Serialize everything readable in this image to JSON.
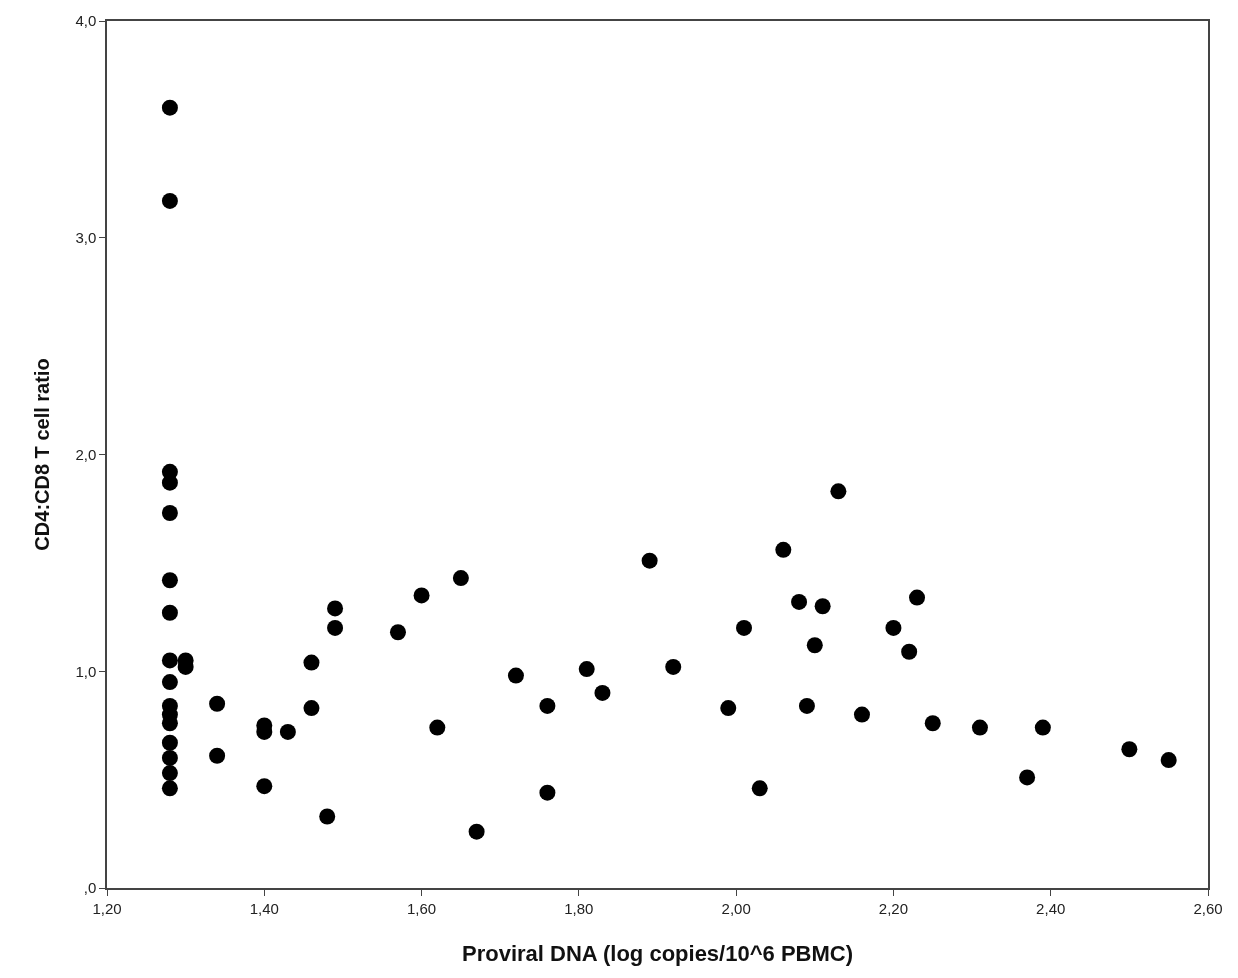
{
  "chart_data": {
    "type": "scatter",
    "xlabel": "Proviral DNA (log copies/10^6 PBMC)",
    "ylabel": "CD4:CD8 T cell ratio",
    "x": [
      1.28,
      1.28,
      1.28,
      1.28,
      1.28,
      1.28,
      1.28,
      1.28,
      1.28,
      1.28,
      1.28,
      1.28,
      1.28,
      1.28,
      1.28,
      1.28,
      1.3,
      1.3,
      1.34,
      1.34,
      1.4,
      1.4,
      1.4,
      1.43,
      1.46,
      1.46,
      1.48,
      1.49,
      1.49,
      1.57,
      1.6,
      1.62,
      1.65,
      1.67,
      1.72,
      1.76,
      1.76,
      1.81,
      1.83,
      1.89,
      1.92,
      1.99,
      2.01,
      2.03,
      2.06,
      2.08,
      2.09,
      2.1,
      2.11,
      2.13,
      2.16,
      2.2,
      2.22,
      2.23,
      2.25,
      2.31,
      2.37,
      2.39,
      2.5,
      2.55
    ],
    "series": [
      {
        "color": "#000000",
        "values": [
          3.6,
          3.17,
          1.92,
          1.87,
          1.73,
          1.42,
          1.27,
          1.05,
          0.95,
          0.84,
          0.8,
          0.76,
          0.67,
          0.6,
          0.53,
          0.46,
          1.05,
          1.02,
          0.85,
          0.61,
          0.75,
          0.72,
          0.47,
          0.72,
          1.04,
          0.83,
          0.33,
          1.29,
          1.2,
          1.18,
          1.35,
          0.74,
          1.43,
          0.26,
          0.98,
          0.84,
          0.44,
          1.01,
          0.9,
          1.51,
          1.02,
          0.83,
          1.2,
          0.46,
          1.56,
          1.32,
          0.84,
          1.12,
          1.3,
          1.83,
          0.8,
          1.2,
          1.09,
          1.34,
          0.76,
          0.74,
          0.51,
          0.74,
          0.64,
          0.59
        ]
      }
    ],
    "xlim": [
      1.2,
      2.6
    ],
    "xticks": [
      {
        "value": 1.2,
        "label": "1,20"
      },
      {
        "value": 1.4,
        "label": "1,40"
      },
      {
        "value": 1.6,
        "label": "1,60"
      },
      {
        "value": 1.8,
        "label": "1,80"
      },
      {
        "value": 2.0,
        "label": "2,00"
      },
      {
        "value": 2.2,
        "label": "2,20"
      },
      {
        "value": 2.4,
        "label": "2,40"
      },
      {
        "value": 2.6,
        "label": "2,60"
      }
    ],
    "ylim": [
      0,
      4
    ],
    "yticks": [
      {
        "value": 0,
        "label": ",0"
      },
      {
        "value": 1,
        "label": "1,0"
      },
      {
        "value": 2,
        "label": "2,0"
      },
      {
        "value": 3,
        "label": "3,0"
      },
      {
        "value": 4,
        "label": "4,0"
      }
    ],
    "marker": "circle"
  }
}
